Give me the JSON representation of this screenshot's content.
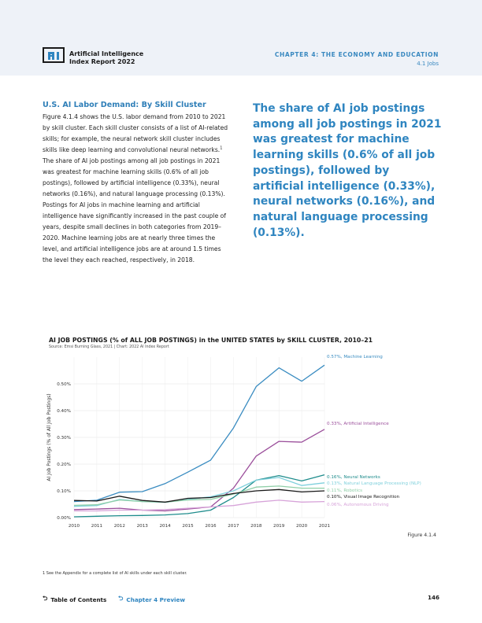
{
  "header": {
    "logo_icon": "ai-index-logo-icon",
    "title_line1": "Artificial Intelligence",
    "title_line2": "Index Report 2022",
    "chapter": "CHAPTER 4: THE ECONOMY AND EDUCATION",
    "section": "4.1 Jobs"
  },
  "article": {
    "subhead": "U.S. AI Labor Demand: By Skill Cluster",
    "paragraph_part1": "Figure 4.1.4 shows the U.S. labor demand from 2010 to 2021 by skill cluster. Each skill cluster consists of a list of AI-related skills; for example, the neural network skill cluster includes skills like deep learning and convolutional neural networks.",
    "footnote_marker": "1",
    "paragraph_part2": " The share of AI job postings among all job postings in 2021 was greatest for machine learning skills (0.6% of all job postings), followed by artificial intelligence (0.33%), neural networks (0.16%), and natural language processing (0.13%). Postings for AI jobs in machine learning and artificial intelligence have significantly increased in the past couple of years, despite small declines in both categories from 2019–2020. Machine learning jobs are at nearly three times the level, and artificial intelligence jobs are at around 1.5 times the level they each reached, respectively, in 2018."
  },
  "pull_quote": "The share of AI job postings among all job postings in 2021 was greatest for machine learning skills (0.6% of all job postings), followed by artificial intelligence (0.33%), neural networks (0.16%), and natural language processing (0.13%).",
  "chart_data": {
    "type": "line",
    "title": "AI JOB POSTINGS (% of ALL JOB POSTINGS) in the UNITED STATES by SKILL CLUSTER, 2010–21",
    "source": "Source: Emsi Burning Glass, 2021 | Chart: 2022 AI Index Report",
    "xlabel": "",
    "ylabel": "AI Job Postings (% of All Job Postings)",
    "x": [
      2010,
      2011,
      2012,
      2013,
      2014,
      2015,
      2016,
      2017,
      2018,
      2019,
      2020,
      2021
    ],
    "y_ticks": [
      "0.00%",
      "0.10%",
      "0.20%",
      "0.30%",
      "0.40%",
      "0.50%"
    ],
    "y_tick_values": [
      0,
      0.1,
      0.2,
      0.3,
      0.4,
      0.5
    ],
    "ylim": [
      0,
      0.6
    ],
    "xlim": [
      2010,
      2021
    ],
    "grid": true,
    "series": [
      {
        "name": "Machine Learning",
        "end_label": "0.57%, Machine Learning",
        "color": "#3a8cc1",
        "values": [
          0.06,
          0.065,
          0.095,
          0.097,
          0.127,
          0.17,
          0.215,
          0.335,
          0.49,
          0.56,
          0.51,
          0.57
        ]
      },
      {
        "name": "Artificial Intelligence",
        "end_label": "0.33%, Artificial Intelligence",
        "color": "#9b4f9b",
        "values": [
          0.03,
          0.032,
          0.035,
          0.028,
          0.025,
          0.032,
          0.04,
          0.11,
          0.23,
          0.285,
          0.282,
          0.33
        ]
      },
      {
        "name": "Neural Networks",
        "end_label": "0.16%, Neural Networks",
        "color": "#1e8c8c",
        "values": [
          0.003,
          0.005,
          0.007,
          0.008,
          0.01,
          0.015,
          0.028,
          0.075,
          0.14,
          0.157,
          0.137,
          0.16
        ]
      },
      {
        "name": "Natural Language Processing (NLP)",
        "end_label": "0.13%, Natural Language Processing (NLP)",
        "color": "#7fd0dc",
        "values": [
          0.042,
          0.045,
          0.068,
          0.06,
          0.057,
          0.068,
          0.078,
          0.1,
          0.14,
          0.15,
          0.12,
          0.13
        ]
      },
      {
        "name": "Robotics",
        "end_label": "0.11%, Robotics",
        "color": "#8fcfa8",
        "values": [
          0.046,
          0.048,
          0.066,
          0.06,
          0.058,
          0.066,
          0.068,
          0.088,
          0.114,
          0.118,
          0.11,
          0.11
        ]
      },
      {
        "name": "Visual Image Recognition",
        "end_label": "0.10%, Visual Image Recognition",
        "color": "#1a1a1a",
        "values": [
          0.064,
          0.062,
          0.08,
          0.064,
          0.058,
          0.072,
          0.075,
          0.09,
          0.1,
          0.105,
          0.096,
          0.1
        ]
      },
      {
        "name": "Autonomous Driving",
        "end_label": "0.06%, Autonomous Driving",
        "color": "#d7a3d9",
        "values": [
          0.025,
          0.025,
          0.028,
          0.028,
          0.03,
          0.035,
          0.04,
          0.045,
          0.058,
          0.065,
          0.058,
          0.06
        ]
      }
    ]
  },
  "figure_label": "Figure 4.1.4",
  "footnote": "1 See the Appendix for a complete list of AI skills under each skill cluster.",
  "footer": {
    "toc_icon": "return-arrow-icon",
    "toc_label": "Table of Contents",
    "preview_icon": "return-arrow-icon",
    "preview_label": "Chapter 4 Preview",
    "page_number": "146"
  }
}
